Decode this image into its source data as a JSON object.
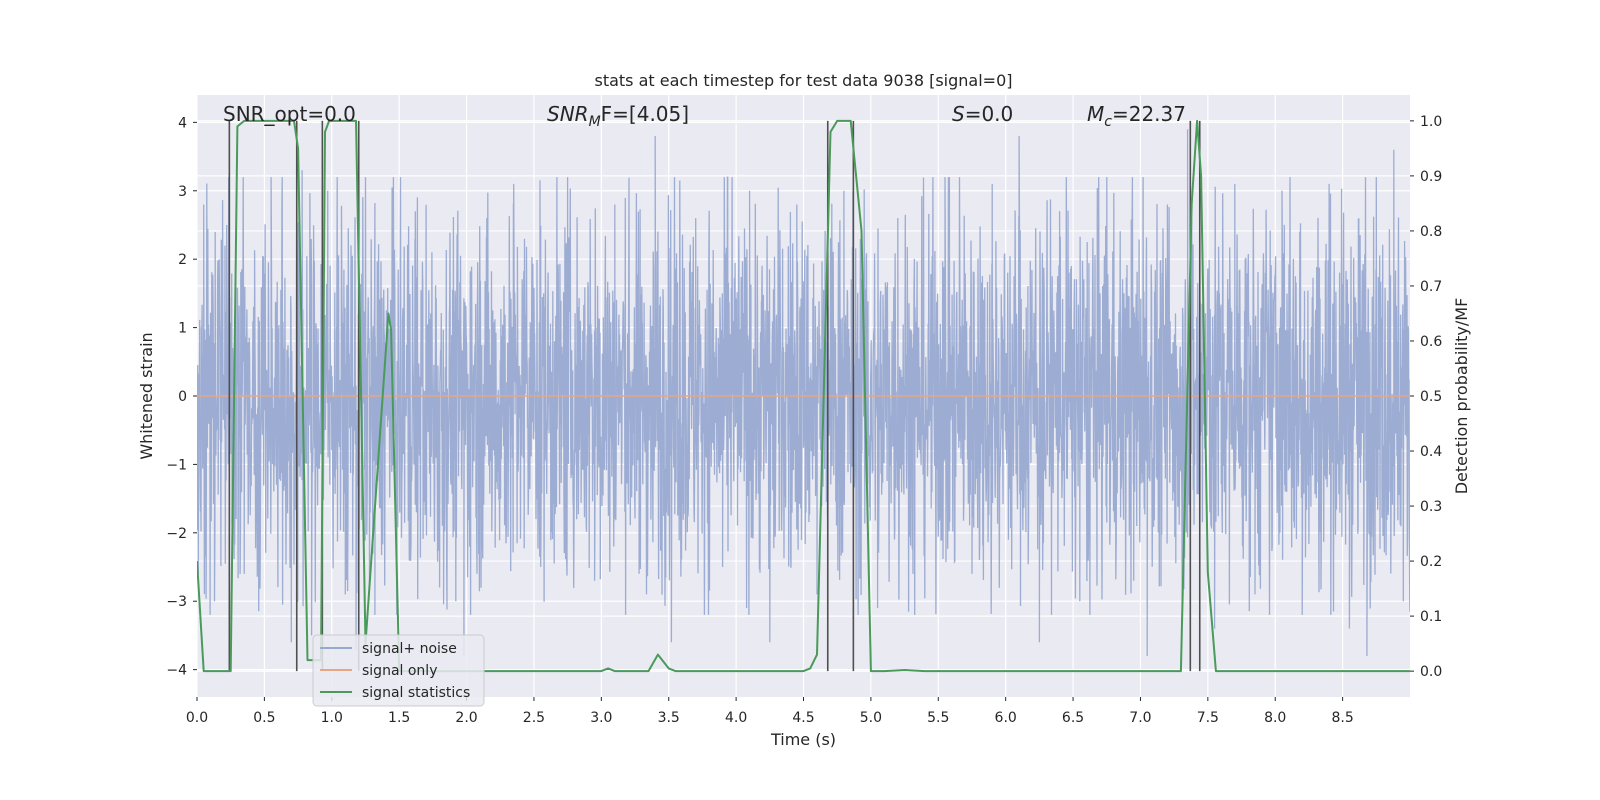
{
  "chart_data": {
    "type": "line",
    "title": "stats at each timestep for test data 9038 [signal=0]",
    "xlabel": "Time (s)",
    "ylabel": "Whitened strain",
    "y2label": "Detection probability/MF",
    "xlim": [
      0.0,
      9.0
    ],
    "ylim": [
      -4.4,
      4.4
    ],
    "y2lim": [
      -0.047,
      1.047
    ],
    "xticks": [
      0.0,
      0.5,
      1.0,
      1.5,
      2.0,
      2.5,
      3.0,
      3.5,
      4.0,
      4.5,
      5.0,
      5.5,
      6.0,
      6.5,
      7.0,
      7.5,
      8.0,
      8.5
    ],
    "yticks": [
      -4,
      -3,
      -2,
      -1,
      0,
      1,
      2,
      3,
      4
    ],
    "y2ticks": [
      0.0,
      0.1,
      0.2,
      0.3,
      0.4,
      0.5,
      0.6,
      0.7,
      0.8,
      0.9,
      1.0
    ],
    "ytick_labels": [
      "−4",
      "−3",
      "−2",
      "−1",
      "0",
      "1",
      "2",
      "3",
      "4"
    ],
    "grid": true,
    "legend_position": "lower-left",
    "annotations": [
      {
        "text": "SNR_opt=0.0"
      },
      {
        "text": "SNR",
        "sub": "M",
        "suffix": "F=[4.05]",
        "italic": true
      },
      {
        "text": "S",
        "suffix": "=0.0",
        "italic": true
      },
      {
        "text": "M",
        "sub": "c",
        "suffix": "=22.37",
        "italic": true
      }
    ],
    "colors": {
      "background": "#EAEAF2",
      "grid": "#FFFFFF",
      "noise": "#98A9D0",
      "signal_only": "#E8A582",
      "statistic": "#4A9A5A",
      "markers": "#505050"
    },
    "series": [
      {
        "name": "signal+ noise",
        "axis": "left",
        "kind": "noise",
        "envelope_dense": 1.6,
        "x_range": [
          0.0,
          9.0
        ],
        "spikes": [
          {
            "x": 0.05,
            "y": 2.8
          },
          {
            "x": 0.13,
            "y": -3.0
          },
          {
            "x": 0.22,
            "y": 2.5
          },
          {
            "x": 0.35,
            "y": -2.6
          },
          {
            "x": 0.55,
            "y": 3.2
          },
          {
            "x": 0.7,
            "y": -3.6
          },
          {
            "x": 0.78,
            "y": 3.3
          },
          {
            "x": 0.85,
            "y": -3.5
          },
          {
            "x": 0.97,
            "y": 3.0
          },
          {
            "x": 1.1,
            "y": -2.9
          },
          {
            "x": 1.18,
            "y": -3.7
          },
          {
            "x": 1.32,
            "y": -3.2
          },
          {
            "x": 1.45,
            "y": 2.7
          },
          {
            "x": 1.62,
            "y": 2.7
          },
          {
            "x": 1.8,
            "y": -2.8
          },
          {
            "x": 1.98,
            "y": -3.8
          },
          {
            "x": 2.15,
            "y": 2.6
          },
          {
            "x": 2.35,
            "y": 3.1
          },
          {
            "x": 2.55,
            "y": -2.5
          },
          {
            "x": 2.75,
            "y": 3.2
          },
          {
            "x": 2.95,
            "y": -2.7
          },
          {
            "x": 3.1,
            "y": 2.8
          },
          {
            "x": 3.28,
            "y": -2.6
          },
          {
            "x": 3.4,
            "y": 3.8
          },
          {
            "x": 3.52,
            "y": -3.6
          },
          {
            "x": 3.7,
            "y": 2.6
          },
          {
            "x": 3.9,
            "y": -2.5
          },
          {
            "x": 4.1,
            "y": 3.0
          },
          {
            "x": 4.25,
            "y": -3.6
          },
          {
            "x": 4.45,
            "y": 2.8
          },
          {
            "x": 4.6,
            "y": -2.9
          },
          {
            "x": 4.8,
            "y": 3.0
          },
          {
            "x": 5.05,
            "y": -3.1
          },
          {
            "x": 5.2,
            "y": 2.6
          },
          {
            "x": 5.4,
            "y": -2.5
          },
          {
            "x": 5.55,
            "y": 3.2
          },
          {
            "x": 5.75,
            "y": -2.6
          },
          {
            "x": 5.9,
            "y": 3.1
          },
          {
            "x": 6.1,
            "y": 3.8
          },
          {
            "x": 6.25,
            "y": -3.6
          },
          {
            "x": 6.4,
            "y": 2.7
          },
          {
            "x": 6.55,
            "y": -3.0
          },
          {
            "x": 6.75,
            "y": 3.2
          },
          {
            "x": 6.95,
            "y": -2.7
          },
          {
            "x": 7.05,
            "y": -3.8
          },
          {
            "x": 7.2,
            "y": 2.8
          },
          {
            "x": 7.35,
            "y": 3.9
          },
          {
            "x": 7.55,
            "y": -3.4
          },
          {
            "x": 7.7,
            "y": 3.1
          },
          {
            "x": 7.85,
            "y": -2.9
          },
          {
            "x": 8.05,
            "y": 3.0
          },
          {
            "x": 8.2,
            "y": -3.2
          },
          {
            "x": 8.4,
            "y": 3.1
          },
          {
            "x": 8.55,
            "y": -3.4
          },
          {
            "x": 8.68,
            "y": -3.8
          },
          {
            "x": 8.75,
            "y": 3.2
          },
          {
            "x": 8.88,
            "y": 3.6
          },
          {
            "x": 8.95,
            "y": -3.0
          }
        ]
      },
      {
        "name": "signal only",
        "axis": "left",
        "x": [
          0.0,
          9.0
        ],
        "y": [
          0.0,
          0.0
        ]
      },
      {
        "name": "signal statistics",
        "axis": "right",
        "x": [
          0.0,
          0.05,
          0.2,
          0.25,
          0.3,
          0.35,
          0.5,
          0.72,
          0.75,
          0.82,
          0.92,
          0.95,
          0.98,
          1.1,
          1.18,
          1.21,
          1.25,
          1.42,
          1.44,
          1.5,
          1.55,
          3.0,
          3.05,
          3.1,
          3.35,
          3.42,
          3.5,
          3.55,
          4.5,
          4.55,
          4.6,
          4.7,
          4.75,
          4.85,
          4.93,
          5.0,
          5.1,
          5.25,
          5.4,
          7.3,
          7.38,
          7.42,
          7.45,
          7.5,
          7.56,
          8.5,
          9.0
        ],
        "y": [
          0.2,
          0.0,
          0.0,
          0.0,
          0.99,
          1.0,
          1.0,
          1.0,
          0.95,
          0.02,
          0.02,
          0.98,
          1.0,
          1.0,
          1.0,
          0.6,
          0.05,
          0.65,
          0.62,
          0.0,
          0.0,
          0.0,
          0.005,
          0.0,
          0.0,
          0.03,
          0.005,
          0.0,
          0.0,
          0.005,
          0.03,
          0.98,
          1.0,
          1.0,
          0.8,
          0.0,
          0.0,
          0.002,
          0.0,
          0.0,
          0.85,
          1.0,
          0.9,
          0.18,
          0.0,
          0.0,
          0.0
        ]
      }
    ],
    "marker_lines": [
      0.24,
      0.74,
      0.93,
      1.2,
      4.68,
      4.87,
      7.37,
      7.44
    ]
  }
}
